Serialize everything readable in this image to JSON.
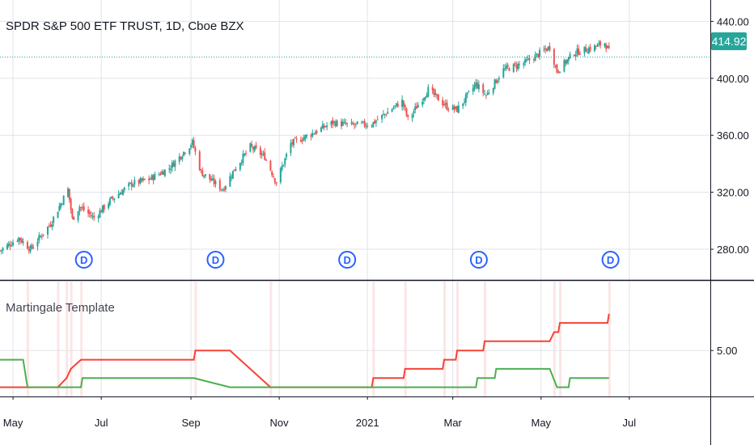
{
  "chart_title": "SPDR S&P 500 ETF TRUST, 1D, Cboe BZX",
  "last_price": "414.92",
  "dividend_marker": "D",
  "colors": {
    "up": "#26a69a",
    "down": "#ef5350",
    "red_line": "#f44336",
    "green_line": "#4caf50",
    "grid": "#e0e3eb",
    "marker": "#2962ff"
  },
  "chart_data": [
    {
      "type": "candlestick",
      "title": "SPDR S&P 500 ETF TRUST, 1D, Cboe BZX",
      "y_ticks": [
        "440.00",
        "400.00",
        "360.00",
        "320.00",
        "280.00"
      ],
      "y_tick_values": [
        440,
        400,
        360,
        320,
        280
      ],
      "ylim": [
        259,
        455
      ],
      "x_ticks": [
        "May",
        "Jul",
        "Sep",
        "Nov",
        "2021",
        "Mar",
        "May",
        "Jul"
      ],
      "x_tick_dates": [
        "2020-05-01",
        "2020-07-01",
        "2020-09-01",
        "2020-11-01",
        "2021-01-01",
        "2021-03-01",
        "2021-05-01",
        "2021-07-01"
      ],
      "xlim": [
        "2020-04-22",
        "2021-08-26"
      ],
      "last_price": 414.92,
      "close_path": [
        [
          "2020-04-22",
          279
        ],
        [
          "2020-05-05",
          288
        ],
        [
          "2020-05-13",
          280
        ],
        [
          "2020-05-27",
          298
        ],
        [
          "2020-06-08",
          322
        ],
        [
          "2020-06-11",
          301
        ],
        [
          "2020-06-16",
          310
        ],
        [
          "2020-06-26",
          302
        ],
        [
          "2020-07-08",
          315
        ],
        [
          "2020-07-22",
          326
        ],
        [
          "2020-08-03",
          329
        ],
        [
          "2020-08-17",
          337
        ],
        [
          "2020-09-02",
          355
        ],
        [
          "2020-09-08",
          334
        ],
        [
          "2020-09-23",
          322
        ],
        [
          "2020-10-01",
          336
        ],
        [
          "2020-10-12",
          352
        ],
        [
          "2020-10-22",
          345
        ],
        [
          "2020-10-30",
          327
        ],
        [
          "2020-11-09",
          354
        ],
        [
          "2020-11-23",
          361
        ],
        [
          "2020-12-08",
          369
        ],
        [
          "2020-12-21",
          367
        ],
        [
          "2021-01-04",
          368
        ],
        [
          "2021-01-25",
          384
        ],
        [
          "2021-01-29",
          371
        ],
        [
          "2021-02-12",
          392
        ],
        [
          "2021-02-25",
          380
        ],
        [
          "2021-03-04",
          378
        ],
        [
          "2021-03-17",
          396
        ],
        [
          "2021-03-24",
          388
        ],
        [
          "2021-04-05",
          406
        ],
        [
          "2021-04-20",
          411
        ],
        [
          "2021-05-07",
          422
        ],
        [
          "2021-05-12",
          405
        ],
        [
          "2021-05-24",
          418
        ],
        [
          "2021-06-07",
          422
        ],
        [
          "2021-06-14",
          425
        ],
        [
          "2021-06-17",
          419
        ]
      ],
      "dividend_dates": [
        "2020-06-19",
        "2020-09-18",
        "2020-12-18",
        "2021-03-19",
        "2021-06-18"
      ]
    },
    {
      "type": "line",
      "title": "Martingale Template",
      "y_ticks": [
        "5.00"
      ],
      "y_tick_values": [
        5
      ],
      "ylim": [
        0,
        12.5
      ],
      "series": [
        {
          "values": [
            [
              "2020-04-22",
              1
            ],
            [
              "2020-05-11",
              1
            ],
            [
              "2020-06-01",
              1
            ],
            [
              "2020-06-07",
              2
            ],
            [
              "2020-06-10",
              3
            ],
            [
              "2020-06-17",
              4
            ],
            [
              "2020-09-03",
              4
            ],
            [
              "2020-09-04",
              5
            ],
            [
              "2020-09-28",
              5
            ],
            [
              "2020-10-26",
              1
            ],
            [
              "2021-01-04",
              1
            ],
            [
              "2021-01-05",
              2
            ],
            [
              "2021-01-26",
              2
            ],
            [
              "2021-01-27",
              3
            ],
            [
              "2021-02-22",
              3
            ],
            [
              "2021-02-23",
              4
            ],
            [
              "2021-03-03",
              4
            ],
            [
              "2021-03-04",
              5
            ],
            [
              "2021-03-22",
              5
            ],
            [
              "2021-03-23",
              6
            ],
            [
              "2021-05-07",
              6
            ],
            [
              "2021-05-10",
              7
            ],
            [
              "2021-05-13",
              7
            ],
            [
              "2021-05-14",
              8
            ],
            [
              "2021-06-16",
              8
            ],
            [
              "2021-06-17",
              9
            ]
          ]
        },
        {
          "values": [
            [
              "2020-04-22",
              4
            ],
            [
              "2020-05-08",
              4
            ],
            [
              "2020-05-11",
              1
            ],
            [
              "2020-06-17",
              1
            ],
            [
              "2020-06-18",
              2
            ],
            [
              "2020-09-03",
              2
            ],
            [
              "2020-09-28",
              1
            ],
            [
              "2021-03-17",
              1
            ],
            [
              "2021-03-18",
              2
            ],
            [
              "2021-03-30",
              2
            ],
            [
              "2021-03-31",
              3
            ],
            [
              "2021-05-07",
              3
            ],
            [
              "2021-05-12",
              1
            ],
            [
              "2021-05-20",
              1
            ],
            [
              "2021-05-21",
              2
            ],
            [
              "2021-06-17",
              2
            ]
          ]
        }
      ]
    }
  ]
}
